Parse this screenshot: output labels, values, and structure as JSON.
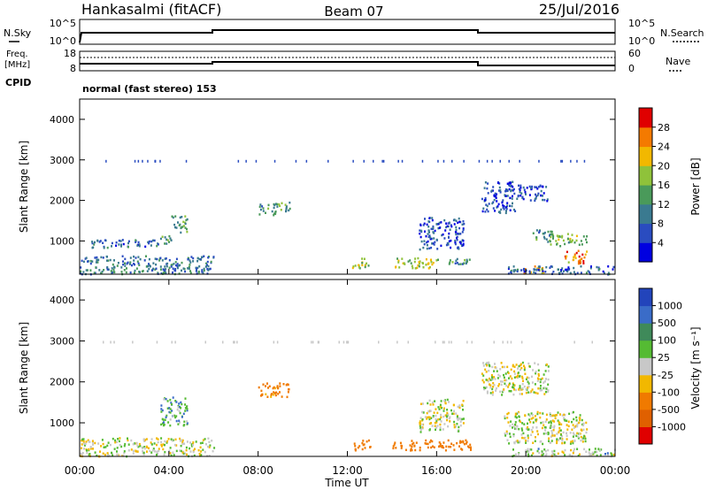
{
  "header": {
    "station": "Hankasalmi (fitACF)",
    "beam": "Beam 07",
    "date": "25/Jul/2016"
  },
  "top_panels": {
    "nsky_label": "N.Sky",
    "nsky_ticks": [
      "10^5",
      "10^0"
    ],
    "nsearch_label": "N.Search",
    "nsearch_ticks": [
      "10^5",
      "10^0"
    ],
    "freq_label_line1": "Freq.",
    "freq_label_line2": "[MHz]",
    "freq_ticks": [
      "18",
      "8"
    ],
    "nave_label": "Nave",
    "nave_ticks": [
      "60",
      "0"
    ],
    "cpid_label": "CPID",
    "cpid_text": "normal (fast stereo) 153"
  },
  "power_panel": {
    "ylabel": "Slant Range [km]",
    "colorbar_label": "Power [dB]",
    "colorbar_ticks": [
      "28",
      "24",
      "20",
      "16",
      "12",
      "8",
      "4"
    ],
    "colors": [
      "#0000e0",
      "#2a4cc0",
      "#3a7a90",
      "#4a9a5a",
      "#8fc23a",
      "#f2b800",
      "#f47a00",
      "#e00000"
    ]
  },
  "velocity_panel": {
    "ylabel": "Slant Range [km]",
    "colorbar_label": "Velocity [m s⁻¹]",
    "colorbar_ticks": [
      "1000",
      "500",
      "100",
      "25",
      "-25",
      "-100",
      "-500",
      "-1000"
    ],
    "colors": [
      "#2244bb",
      "#3a6cc8",
      "#3f8a5a",
      "#55bb33",
      "#c8c8c8",
      "#f2b800",
      "#f07a00",
      "#e06000",
      "#e00000"
    ]
  },
  "xaxis": {
    "label": "Time UT",
    "ticks": [
      "00:00",
      "04:00",
      "08:00",
      "12:00",
      "16:00",
      "20:00",
      "00:00"
    ]
  },
  "chart_data": [
    {
      "type": "heatmap",
      "title": "Power",
      "xlabel": "Time UT",
      "ylabel": "Slant Range [km]",
      "xlim": [
        0,
        24
      ],
      "ylim": [
        180,
        4500
      ],
      "colorbar": {
        "label": "Power [dB]",
        "range": [
          0,
          30
        ]
      },
      "regions": [
        {
          "t": [
            0.0,
            6.0
          ],
          "r": [
            200,
            650
          ],
          "dB": 10
        },
        {
          "t": [
            0.5,
            3.5
          ],
          "r": [
            850,
            1050
          ],
          "dB": 8
        },
        {
          "t": [
            3.6,
            4.1
          ],
          "r": [
            950,
            1250
          ],
          "dB": 14
        },
        {
          "t": [
            4.1,
            4.8
          ],
          "r": [
            1200,
            1650
          ],
          "dB": 13
        },
        {
          "t": [
            8.0,
            8.8
          ],
          "r": [
            1650,
            1950
          ],
          "dB": 12
        },
        {
          "t": [
            8.8,
            9.4
          ],
          "r": [
            1700,
            2000
          ],
          "dB": 14
        },
        {
          "t": [
            12.2,
            13.0
          ],
          "r": [
            350,
            600
          ],
          "dB": 18
        },
        {
          "t": [
            14.0,
            16.0
          ],
          "r": [
            350,
            600
          ],
          "dB": 19
        },
        {
          "t": [
            16.0,
            17.5
          ],
          "r": [
            430,
            580
          ],
          "dB": 12
        },
        {
          "t": [
            15.2,
            17.2
          ],
          "r": [
            800,
            1600
          ],
          "dB": 6
        },
        {
          "t": [
            18.0,
            19.5
          ],
          "r": [
            1700,
            2500
          ],
          "dB": 6
        },
        {
          "t": [
            19.5,
            21.0
          ],
          "r": [
            2000,
            2400
          ],
          "dB": 6
        },
        {
          "t": [
            20.3,
            21.2
          ],
          "r": [
            1000,
            1300
          ],
          "dB": 12
        },
        {
          "t": [
            21.0,
            22.7
          ],
          "r": [
            900,
            1200
          ],
          "dB": 16
        },
        {
          "t": [
            21.7,
            22.7
          ],
          "r": [
            450,
            800
          ],
          "dB": 24
        },
        {
          "t": [
            19.8,
            20.8
          ],
          "r": [
            220,
            400
          ],
          "dB": 22
        },
        {
          "t": [
            19.0,
            24.0
          ],
          "r": [
            200,
            400
          ],
          "dB": 8
        }
      ]
    },
    {
      "type": "heatmap",
      "title": "Velocity",
      "xlabel": "Time UT",
      "ylabel": "Slant Range [km]",
      "xlim": [
        0,
        24
      ],
      "ylim": [
        180,
        4500
      ],
      "colorbar": {
        "label": "Velocity [m s⁻¹]",
        "range": [
          -1000,
          1000
        ]
      },
      "regions": [
        {
          "t": [
            0.0,
            6.0
          ],
          "r": [
            200,
            650
          ],
          "v": 0
        },
        {
          "t": [
            3.6,
            4.8
          ],
          "r": [
            950,
            1650
          ],
          "v": 80
        },
        {
          "t": [
            8.0,
            9.4
          ],
          "r": [
            1650,
            2000
          ],
          "v": -150
        },
        {
          "t": [
            12.2,
            13.0
          ],
          "r": [
            350,
            600
          ],
          "v": -200
        },
        {
          "t": [
            14.0,
            17.5
          ],
          "r": [
            350,
            600
          ],
          "v": -250
        },
        {
          "t": [
            15.2,
            17.2
          ],
          "r": [
            800,
            1600
          ],
          "v": 0
        },
        {
          "t": [
            18.0,
            21.0
          ],
          "r": [
            1700,
            2500
          ],
          "v": 0
        },
        {
          "t": [
            19.0,
            22.7
          ],
          "r": [
            500,
            1300
          ],
          "v": 0
        },
        {
          "t": [
            19.0,
            24.0
          ],
          "r": [
            200,
            400
          ],
          "v": 30
        }
      ]
    }
  ]
}
